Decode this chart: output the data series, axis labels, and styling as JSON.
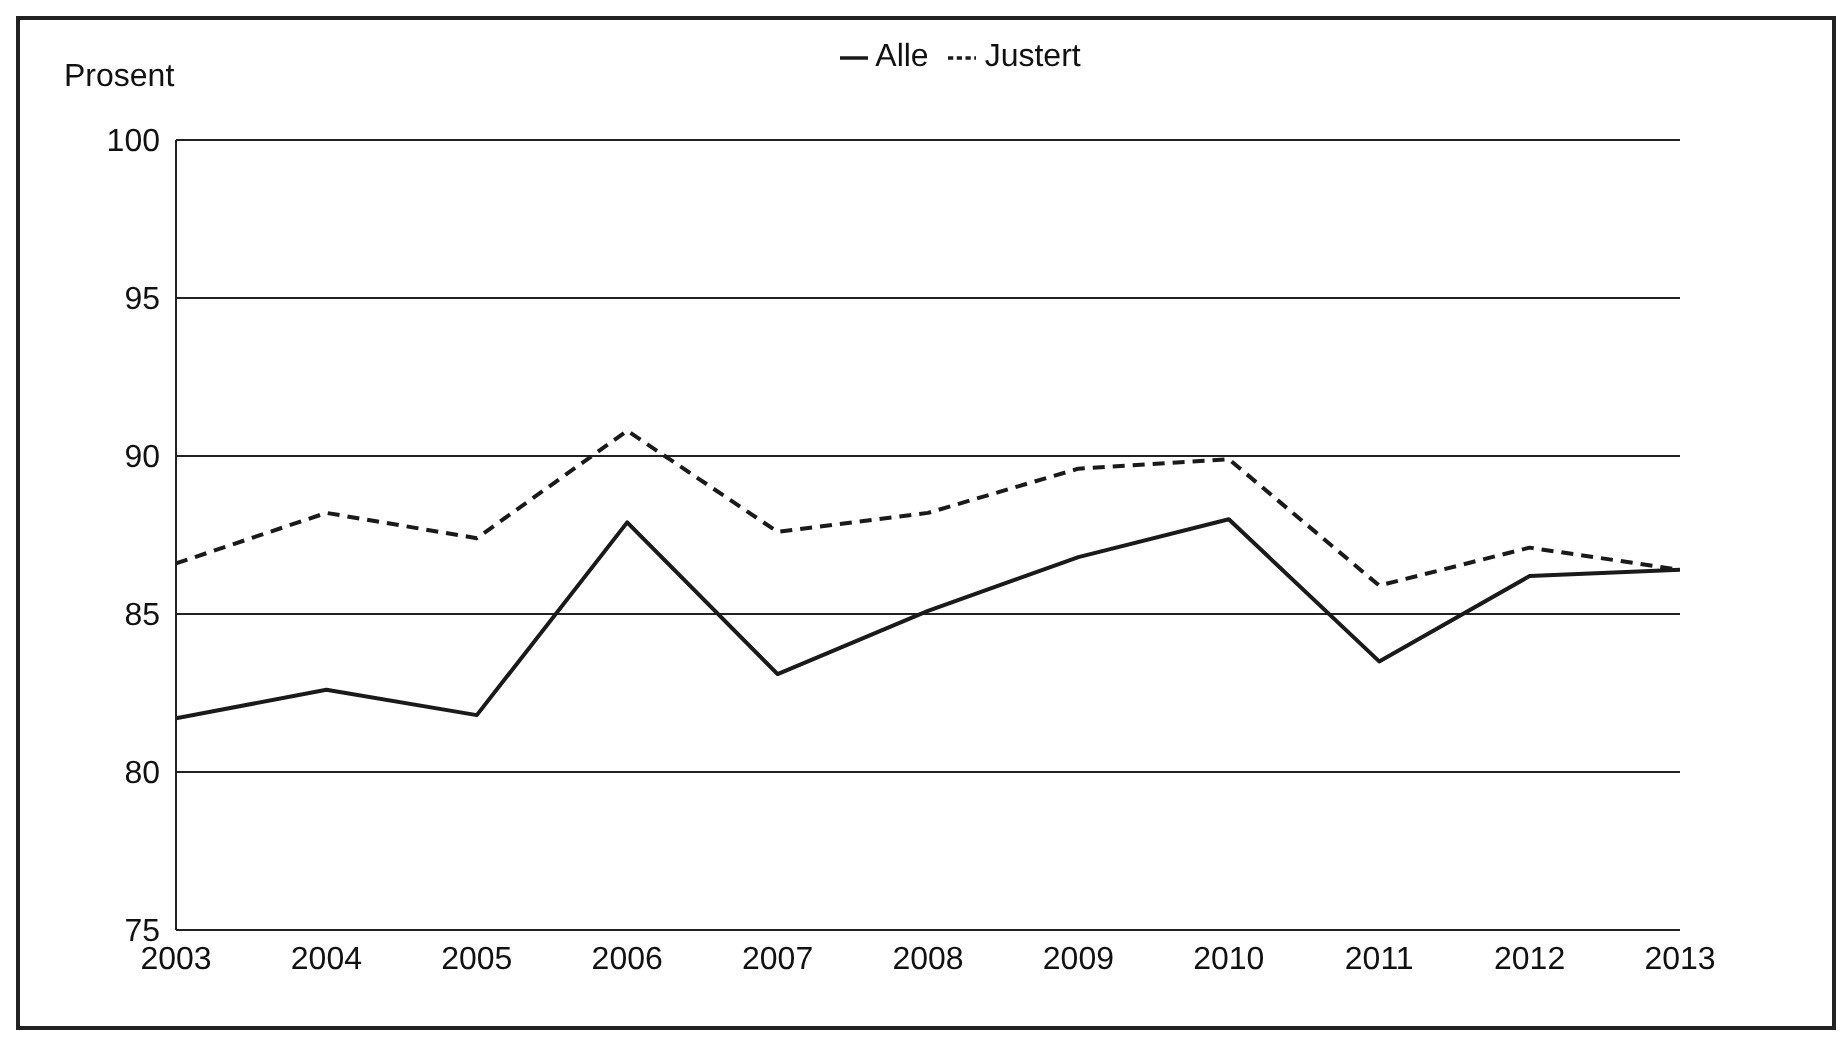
{
  "chart_data": {
    "type": "line",
    "ylabel": "Prosent",
    "x": [
      2003,
      2004,
      2005,
      2006,
      2007,
      2008,
      2009,
      2010,
      2011,
      2012,
      2013
    ],
    "series": [
      {
        "name": "Alle",
        "color": "#1a1a1a",
        "line_style": "solid",
        "values": [
          81.7,
          82.6,
          81.8,
          87.9,
          83.1,
          85.1,
          86.8,
          88.0,
          83.5,
          86.2,
          86.4
        ]
      },
      {
        "name": "Justert",
        "color": "#1a1a1a",
        "line_style": "dashed",
        "values": [
          86.6,
          88.2,
          87.4,
          90.8,
          87.6,
          88.2,
          89.6,
          89.9,
          85.9,
          87.1,
          86.4
        ]
      }
    ],
    "xlim": [
      2003,
      2013
    ],
    "xticks": [
      2003,
      2004,
      2005,
      2006,
      2007,
      2008,
      2009,
      2010,
      2011,
      2012,
      2013
    ],
    "ylim": [
      75,
      100
    ],
    "yticks": [
      75,
      80,
      85,
      90,
      95,
      100
    ],
    "grid": "y",
    "legend": "top",
    "marker": "none"
  }
}
